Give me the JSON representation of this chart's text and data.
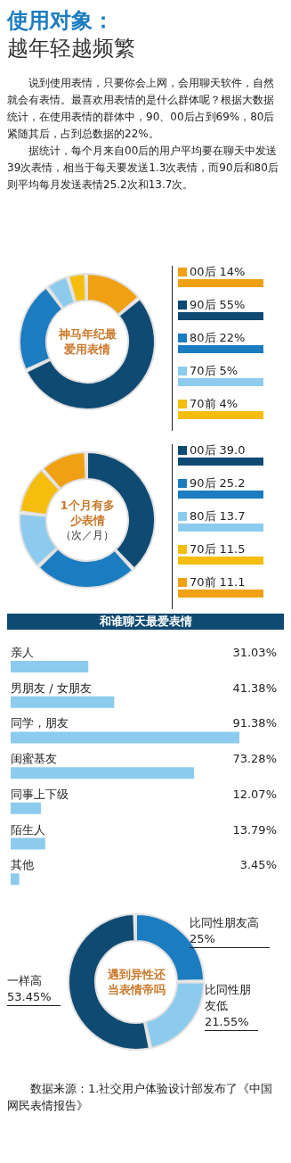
{
  "chart_data": [
    {
      "type": "other",
      "title": "使用对象：",
      "subtitle": "越年轻越频繁",
      "annotations": [
        "说到使用表情，只要你会上网，会用聊天软件，自然就会有表情。最喜欢用表情的是什么群体呢？根据大数据统计，在使用表情的群体中，90、00后占到69%，80后紧随其后，占到总数据的22%。",
        "据统计，每个月来自00后的用户平均要在聊天中发送39次表情，相当于每天要发送1.3次表情，而90后和80后则平均每月发送表情25.2次和13.7次。"
      ]
    },
    {
      "type": "donut",
      "title": "神马年纪最爱用表情",
      "categories": [
        "00后",
        "90后",
        "80后",
        "70后",
        "70前"
      ],
      "values": [
        14,
        55,
        22,
        5,
        4
      ],
      "value_labels": [
        "14%",
        "55%",
        "22%",
        "5%",
        "4%"
      ],
      "colors": [
        "#f0a013",
        "#0f4a73",
        "#1c7cc0",
        "#8ccbee",
        "#f5be0f"
      ],
      "legend": "right"
    },
    {
      "type": "donut",
      "title": "1个月有多少表情",
      "subtitle": "（次／月）",
      "categories": [
        "00后",
        "90后",
        "80后",
        "70后",
        "70前"
      ],
      "values": [
        39.0,
        25.2,
        13.7,
        11.5,
        11.1
      ],
      "value_labels": [
        "39.0",
        "25.2",
        "13.7",
        "11.5",
        "11.1"
      ],
      "colors": [
        "#0f4a73",
        "#1c7cc0",
        "#8ccbee",
        "#f5be0f",
        "#f0a013"
      ],
      "legend": "right"
    },
    {
      "type": "bar",
      "orientation": "horizontal",
      "title": "和谁聊天最爱表情",
      "categories": [
        "亲人",
        "男朋友 / 女朋友",
        "同学，朋友",
        "闺蜜基友",
        "同事上下级",
        "陌生人",
        "其他"
      ],
      "values": [
        31.03,
        41.38,
        91.38,
        73.28,
        12.07,
        13.79,
        3.45
      ],
      "value_labels": [
        "31.03%",
        "41.38%",
        "91.38%",
        "73.28%",
        "12.07%",
        "13.79%",
        "3.45%"
      ],
      "color": "#8ccbee"
    },
    {
      "type": "donut",
      "title": "遇到异性还当表情帝吗",
      "categories": [
        "比同性朋友高",
        "比同性朋友低",
        "一样高"
      ],
      "values": [
        25,
        21.55,
        53.45
      ],
      "value_labels": [
        "25%",
        "21.55%",
        "53.45%"
      ],
      "colors": [
        "#1c7cc0",
        "#8ccbee",
        "#0f4a73"
      ],
      "legend": false,
      "annotations": [
        "数据来源：1.社交用户体验设计部发布了《中国网民表情报告》"
      ]
    }
  ]
}
